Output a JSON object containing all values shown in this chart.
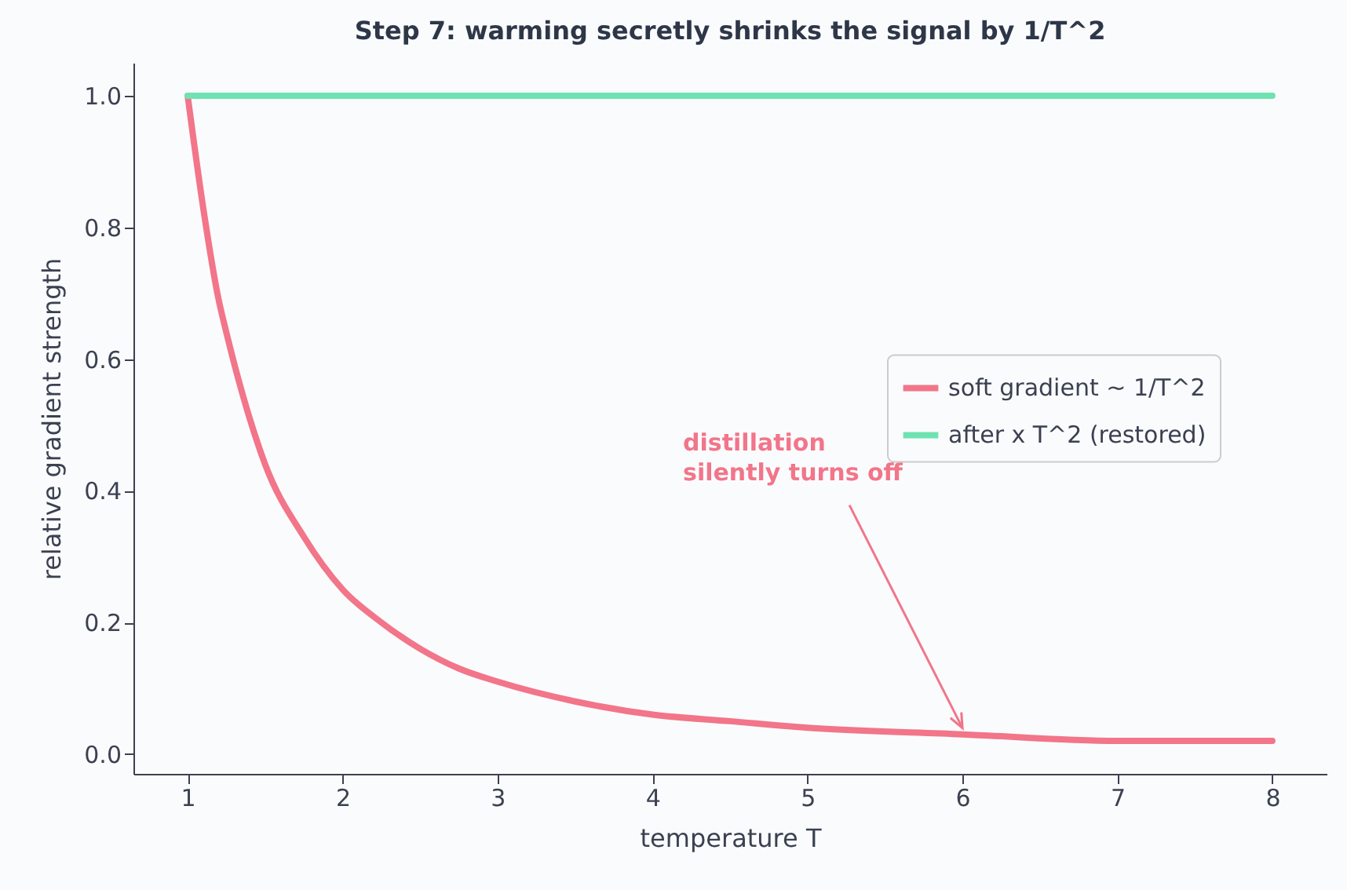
{
  "chart_data": {
    "type": "line",
    "title": "Step 7: warming secretly shrinks the signal by 1/T^2",
    "xlabel": "temperature T",
    "ylabel": "relative gradient strength",
    "xlim": [
      0.65,
      8.35
    ],
    "xticks": [
      1,
      2,
      3,
      4,
      5,
      6,
      7,
      8
    ],
    "ylim": [
      -0.03,
      1.05
    ],
    "yticks": [
      {
        "value": 0,
        "label": "0.0"
      },
      0.2,
      0.4,
      0.6,
      0.8,
      {
        "value": 1,
        "label": "1.0"
      }
    ],
    "series": [
      {
        "name": "soft gradient ~ 1/T^2",
        "color": "#f27589",
        "x": [
          1,
          1.1,
          1.2,
          1.25,
          1.4,
          1.5,
          1.75,
          2,
          2.25,
          2.5,
          2.75,
          3,
          3.5,
          4,
          4.5,
          5,
          6,
          7,
          8
        ],
        "values": [
          1.0,
          0.83,
          0.69,
          0.64,
          0.51,
          0.44,
          0.33,
          0.25,
          0.2,
          0.16,
          0.13,
          0.11,
          0.08,
          0.06,
          0.05,
          0.04,
          0.03,
          0.02,
          0.02
        ]
      },
      {
        "name": "after x T^2 (restored)",
        "color": "#6fe2b2",
        "x": [
          1,
          8
        ],
        "values": [
          1.0,
          1.0
        ]
      }
    ],
    "annotations": [
      {
        "text": "distillation\nsilently turns off",
        "x": 6,
        "y": 0.03
      }
    ],
    "grid": false,
    "legend": "right",
    "marker": "none",
    "line_style": "solid"
  }
}
